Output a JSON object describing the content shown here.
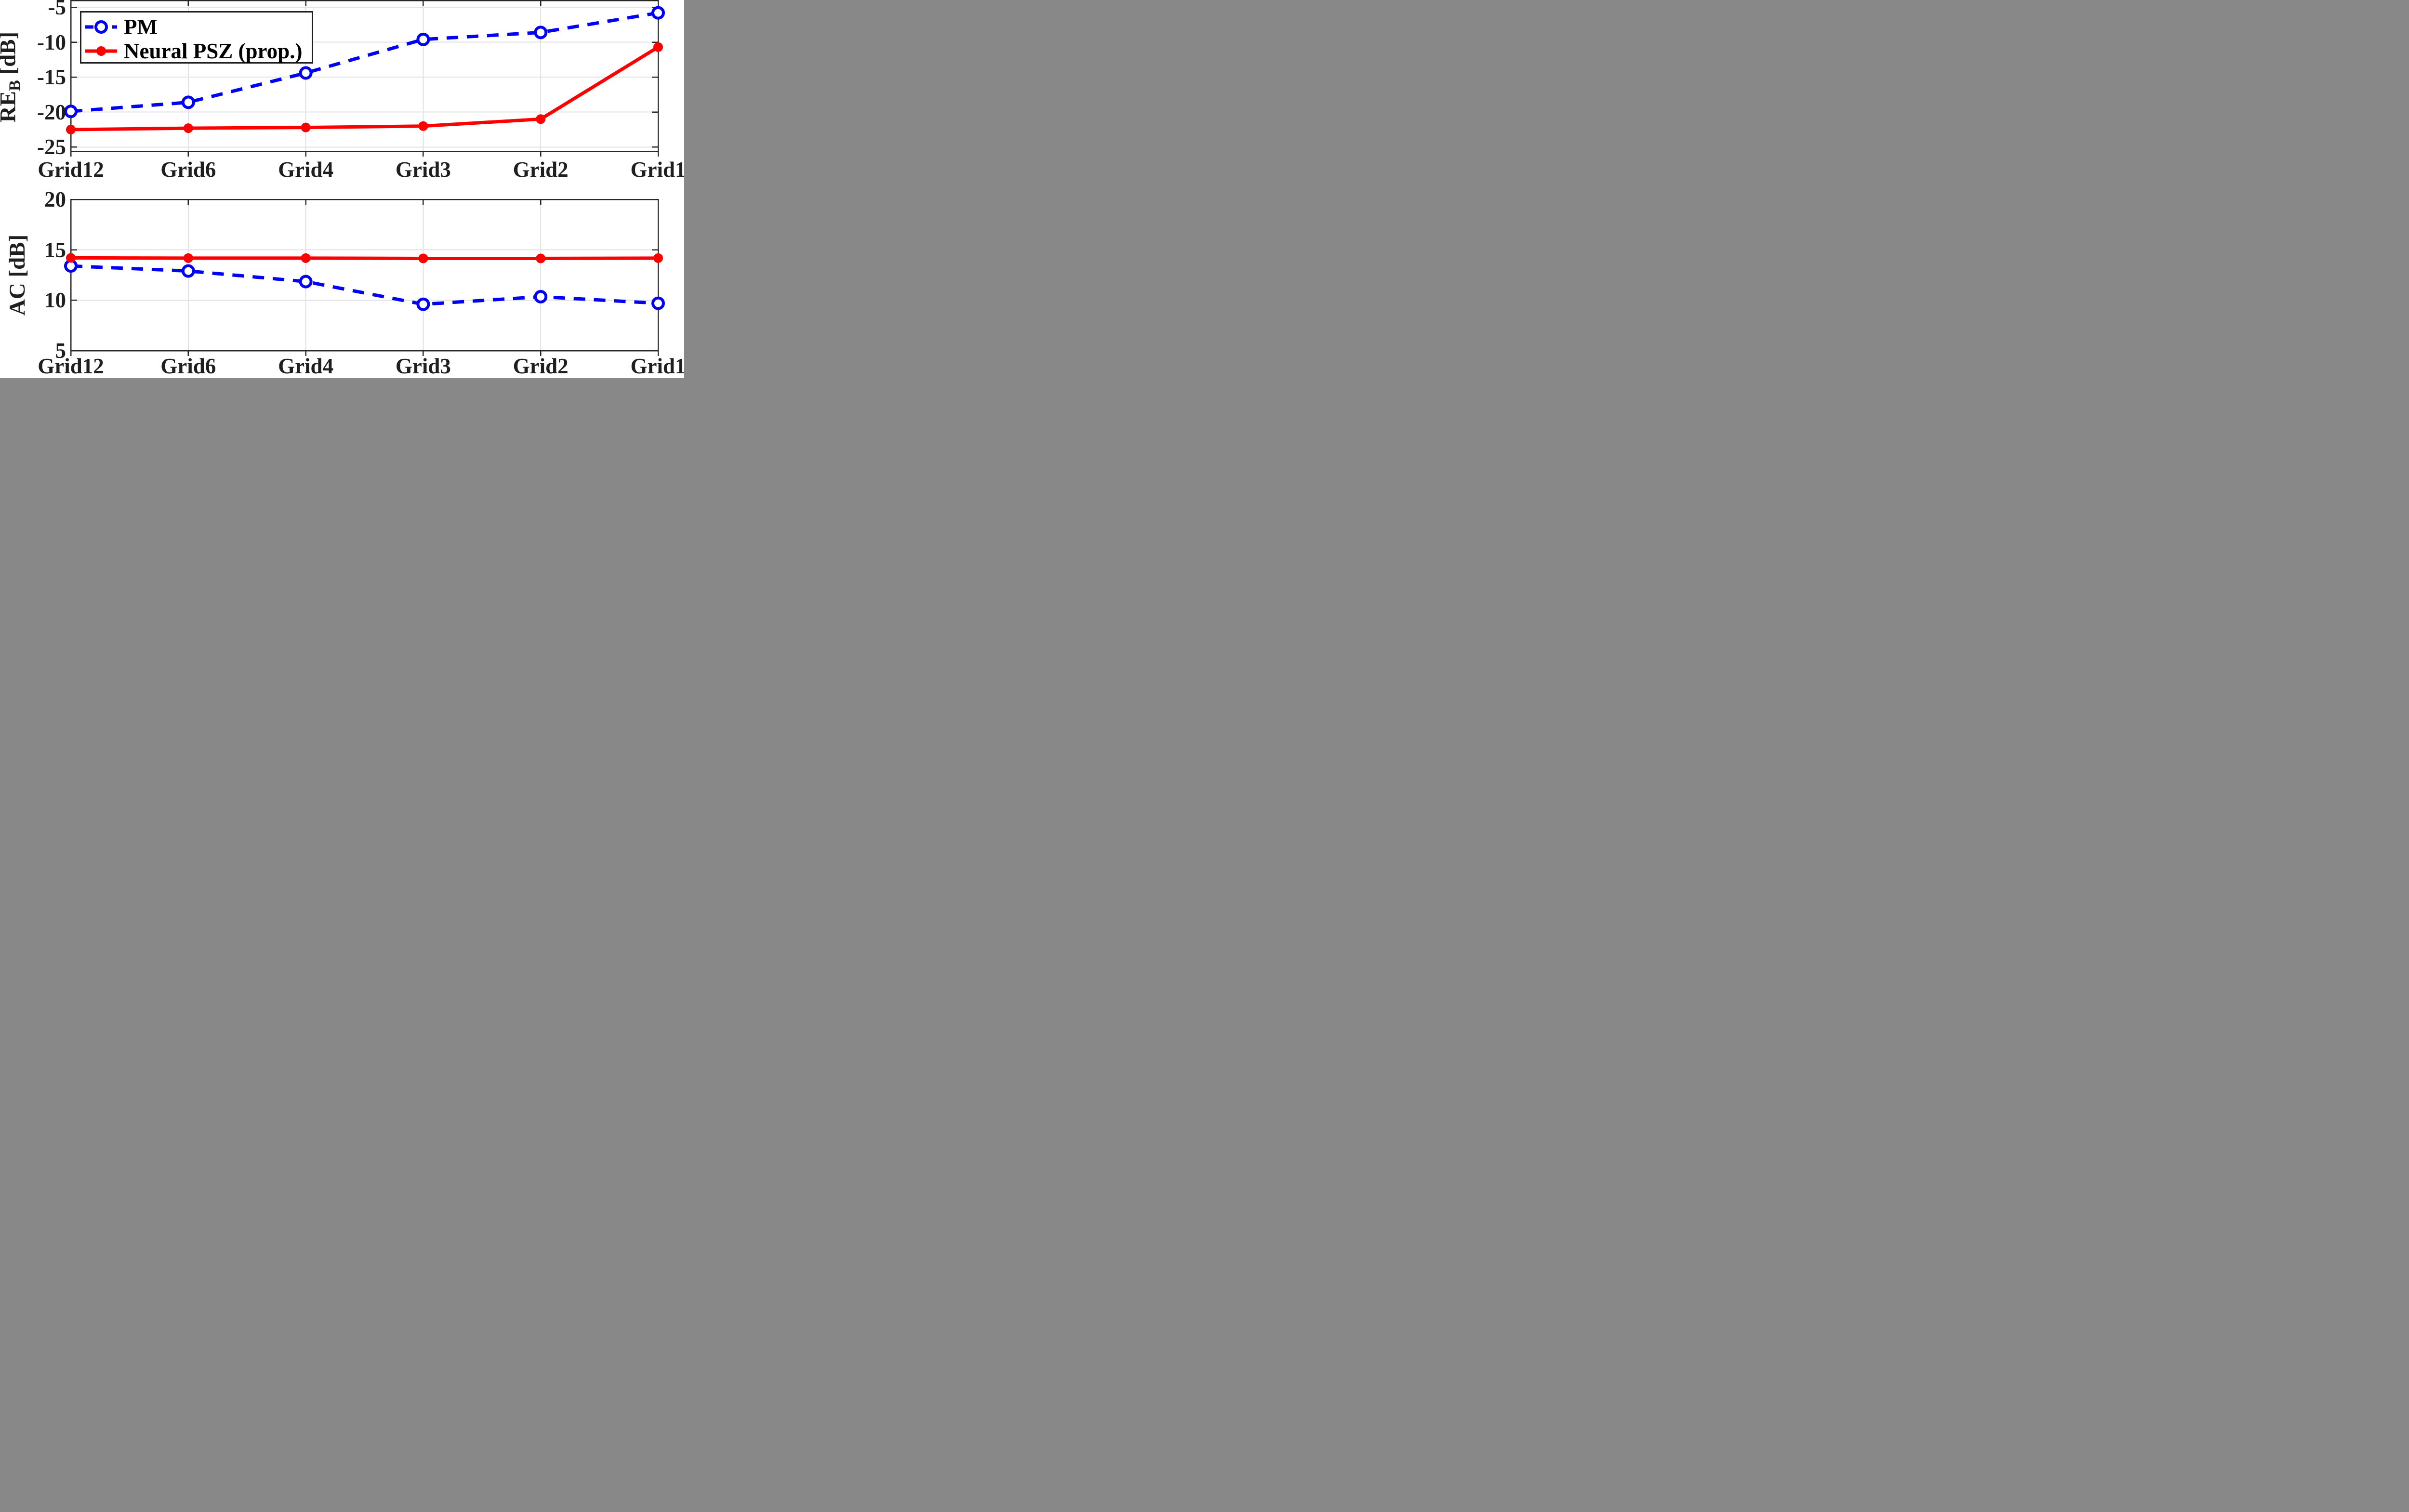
{
  "figure": {
    "background": "#ffffff",
    "axis_color": "#262626",
    "grid_color": "#e2e2e2",
    "text_color": "#1f1f1f"
  },
  "legend": {
    "position": "top-left-of-first-plot",
    "items": [
      {
        "label": "PM",
        "color": "#0000ff",
        "line_style": "dashed",
        "marker": "open-circle"
      },
      {
        "label": "Neural PSZ (prop.)",
        "color": "#ff0000",
        "line_style": "solid",
        "marker": "filled-circle"
      }
    ]
  },
  "chart_data": [
    {
      "type": "line",
      "title": "",
      "xlabel": "",
      "ylabel": "RE_B [dB]",
      "ylabel_parts": {
        "main": "RE",
        "sub": "B",
        "unit": " [dB]"
      },
      "categories": [
        "Grid12",
        "Grid6",
        "Grid4",
        "Grid3",
        "Grid2",
        "Grid1"
      ],
      "yticks": [
        -5,
        -10,
        -15,
        -20,
        -25
      ],
      "ylim": [
        -25.6,
        -4.03
      ],
      "grid": true,
      "legend_position": "top-left",
      "series": [
        {
          "name": "PM",
          "color": "#0000ff",
          "style": "dashed",
          "marker": "open-circle",
          "values": [
            -19.9,
            -18.6,
            -14.4,
            -9.6,
            -8.6,
            -5.8
          ]
        },
        {
          "name": "Neural PSZ (prop.)",
          "color": "#ff0000",
          "style": "solid",
          "marker": "filled-circle",
          "values": [
            -22.5,
            -22.3,
            -22.2,
            -22.0,
            -21.0,
            -10.7
          ]
        }
      ]
    },
    {
      "type": "line",
      "title": "",
      "xlabel": "",
      "ylabel": "AC [dB]",
      "ylabel_parts": {
        "main": "AC",
        "sub": "",
        "unit": " [dB]"
      },
      "categories": [
        "Grid12",
        "Grid6",
        "Grid4",
        "Grid3",
        "Grid2",
        "Grid1"
      ],
      "yticks": [
        20,
        15,
        10,
        5
      ],
      "ylim": [
        5,
        20
      ],
      "grid": true,
      "legend_position": "none",
      "series": [
        {
          "name": "PM",
          "color": "#0000ff",
          "style": "dashed",
          "marker": "open-circle",
          "values": [
            13.4,
            12.9,
            11.85,
            9.6,
            10.35,
            9.7
          ]
        },
        {
          "name": "Neural PSZ (prop.)",
          "color": "#ff0000",
          "style": "solid",
          "marker": "filled-circle",
          "values": [
            14.2,
            14.18,
            14.18,
            14.15,
            14.15,
            14.18
          ]
        }
      ]
    }
  ]
}
